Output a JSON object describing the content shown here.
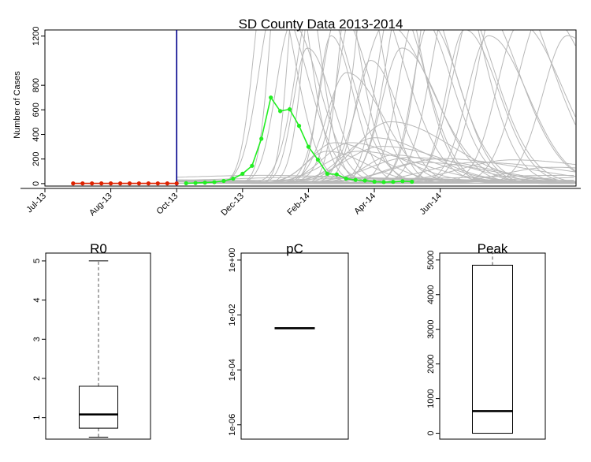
{
  "chart_data": [
    {
      "type": "line",
      "title": "SD County Data 2013-2014",
      "xlabel": "",
      "ylabel": "Number of Cases",
      "x_type": "date",
      "xlim": [
        "2013-07-01",
        "2014-07-31"
      ],
      "ylim": [
        0,
        1200
      ],
      "x_tick_labels": [
        "Jul-13",
        "Aug-13",
        "Oct-13",
        "Dec-13",
        "Feb-14",
        "Apr-14",
        "Jun-14"
      ],
      "x_tick_dates": [
        "2013-07-01",
        "2013-08-19",
        "2013-10-07",
        "2013-11-25",
        "2014-01-13",
        "2014-03-03",
        "2014-04-21"
      ],
      "y_ticks": [
        0,
        200,
        400,
        600,
        800,
        1200
      ],
      "vline_date": "2013-10-07",
      "colors": {
        "observed_before": "#dd2200",
        "observed_after": "#22ee22",
        "vline": "#00008b",
        "projection": "#b8b8b8"
      },
      "series": [
        {
          "role": "observed_before",
          "x": [
            "2013-07-22",
            "2013-07-29",
            "2013-08-05",
            "2013-08-12",
            "2013-08-19",
            "2013-08-26",
            "2013-09-02",
            "2013-09-09",
            "2013-09-16",
            "2013-09-23",
            "2013-09-30",
            "2013-10-07"
          ],
          "y": [
            2,
            2,
            2,
            2,
            2,
            2,
            2,
            2,
            2,
            2,
            2,
            2
          ]
        },
        {
          "role": "observed_after",
          "x": [
            "2013-10-14",
            "2013-10-21",
            "2013-10-28",
            "2013-11-04",
            "2013-11-11",
            "2013-11-18",
            "2013-11-25",
            "2013-12-02",
            "2013-12-09",
            "2013-12-16",
            "2013-12-23",
            "2013-12-30",
            "2014-01-06",
            "2014-01-13",
            "2014-01-20",
            "2014-01-27",
            "2014-02-03",
            "2014-02-10",
            "2014-02-17",
            "2014-02-24",
            "2014-03-03",
            "2014-03-10",
            "2014-03-17",
            "2014-03-24",
            "2014-03-31"
          ],
          "y": [
            3,
            5,
            8,
            12,
            22,
            40,
            80,
            145,
            365,
            700,
            590,
            605,
            470,
            300,
            195,
            80,
            75,
            40,
            30,
            25,
            15,
            12,
            14,
            20,
            15
          ]
        }
      ],
      "projections": {
        "epidemic": [
          [
            340,
            45,
            1800
          ],
          [
            350,
            55,
            1500
          ],
          [
            360,
            40,
            2200
          ],
          [
            370,
            50,
            1300
          ],
          [
            380,
            35,
            1900
          ],
          [
            390,
            45,
            1100
          ],
          [
            400,
            60,
            1600
          ],
          [
            410,
            50,
            2500
          ],
          [
            420,
            40,
            1200
          ],
          [
            430,
            55,
            1400
          ],
          [
            440,
            65,
            900
          ],
          [
            450,
            45,
            2000
          ],
          [
            460,
            70,
            1700
          ],
          [
            470,
            50,
            1000
          ],
          [
            480,
            60,
            2400
          ],
          [
            490,
            80,
            1300
          ],
          [
            500,
            55,
            1500
          ],
          [
            510,
            65,
            1100
          ],
          [
            520,
            70,
            1800
          ],
          [
            530,
            60,
            1400
          ],
          [
            545,
            55,
            1300
          ],
          [
            560,
            65,
            2100
          ],
          [
            575,
            70,
            1600
          ],
          [
            590,
            60,
            1250
          ],
          [
            605,
            75,
            1500
          ],
          [
            620,
            70,
            1200
          ],
          [
            640,
            80,
            1700
          ],
          [
            660,
            75,
            1300
          ],
          [
            690,
            85,
            1400
          ],
          [
            720,
            80,
            1200
          ],
          [
            415,
            70,
            260
          ],
          [
            425,
            80,
            330
          ],
          [
            445,
            90,
            330
          ],
          [
            455,
            110,
            260
          ],
          [
            475,
            100,
            370
          ],
          [
            485,
            120,
            300
          ],
          [
            500,
            90,
            230
          ],
          [
            520,
            130,
            210
          ],
          [
            560,
            150,
            200
          ],
          [
            605,
            160,
            170
          ],
          [
            650,
            170,
            190
          ],
          [
            700,
            150,
            130
          ],
          [
            535,
            120,
            170
          ],
          [
            495,
            110,
            500
          ]
        ],
        "flat": [
          15,
          10,
          5,
          22,
          30,
          40,
          55,
          8,
          18,
          25
        ],
        "x_range": [
          260,
          740
        ]
      }
    },
    {
      "type": "box",
      "title": "R0",
      "ylim": [
        0.45,
        5.2
      ],
      "scale": "linear",
      "y_ticks": [
        1,
        2,
        3,
        4,
        5
      ],
      "y_tick_labels": [
        "1",
        "2",
        "3",
        "4",
        "5"
      ],
      "box": {
        "whisker_low": 0.5,
        "q1": 0.73,
        "median": 1.08,
        "q3": 1.8,
        "whisker_high": 5.0
      }
    },
    {
      "type": "box",
      "title": "pC",
      "ylim": [
        3e-07,
        1.8
      ],
      "scale": "log",
      "y_ticks": [
        1e-06,
        0.0001,
        0.01,
        1
      ],
      "y_tick_labels": [
        "1e-06",
        "1e-04",
        "1e-02",
        "1e+00"
      ],
      "box": {
        "whisker_low": 0.0033,
        "q1": 0.0033,
        "median": 0.0033,
        "q3": 0.0033,
        "whisker_high": 0.0033
      }
    },
    {
      "type": "box",
      "title": "Peak",
      "ylim": [
        -170,
        5200
      ],
      "scale": "linear",
      "y_ticks": [
        0,
        1000,
        2000,
        3000,
        4000,
        5000
      ],
      "y_tick_labels": [
        "0",
        "1000",
        "2000",
        "3000",
        "4000",
        "5000"
      ],
      "box": {
        "whisker_low": 0,
        "q1": 0,
        "median": 640,
        "q3": 4850,
        "whisker_high": 5200
      }
    }
  ]
}
